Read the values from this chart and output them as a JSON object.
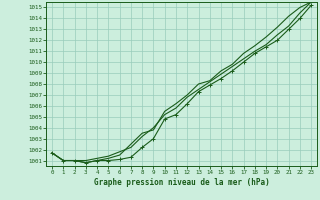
{
  "title": "Graphe pression niveau de la mer (hPa)",
  "bg_color": "#cceedd",
  "grid_color": "#99ccbb",
  "line_color": "#1a5c1a",
  "text_color": "#1a5c1a",
  "xlim": [
    -0.5,
    23.5
  ],
  "ylim": [
    1000.5,
    1015.5
  ],
  "yticks": [
    1001,
    1002,
    1003,
    1004,
    1005,
    1006,
    1007,
    1008,
    1009,
    1010,
    1011,
    1012,
    1013,
    1014,
    1015
  ],
  "xticks": [
    0,
    1,
    2,
    3,
    4,
    5,
    6,
    7,
    8,
    9,
    10,
    11,
    12,
    13,
    14,
    15,
    16,
    17,
    18,
    19,
    20,
    21,
    22,
    23
  ],
  "line1_x": [
    0,
    1,
    2,
    3,
    4,
    5,
    6,
    7,
    8,
    9,
    10,
    11,
    12,
    13,
    14,
    15,
    16,
    17,
    18,
    19,
    20,
    21,
    22,
    23
  ],
  "line1_y": [
    1001.7,
    1001.0,
    1001.0,
    1000.8,
    1001.0,
    1001.0,
    1001.1,
    1001.3,
    1002.2,
    1003.0,
    1004.8,
    1005.2,
    1006.2,
    1007.3,
    1007.9,
    1008.5,
    1009.2,
    1010.0,
    1010.8,
    1011.4,
    1012.0,
    1013.0,
    1014.0,
    1015.2
  ],
  "line2_x": [
    0,
    1,
    2,
    3,
    4,
    5,
    6,
    7,
    8,
    9,
    10,
    11,
    12,
    13,
    14,
    15,
    16,
    17,
    18,
    19,
    20,
    21,
    22,
    23
  ],
  "line2_y": [
    1001.7,
    1001.0,
    1001.0,
    1001.0,
    1001.2,
    1001.4,
    1001.8,
    1002.2,
    1003.2,
    1004.0,
    1005.2,
    1005.8,
    1006.8,
    1007.5,
    1008.2,
    1008.9,
    1009.6,
    1010.3,
    1011.0,
    1011.6,
    1012.5,
    1013.3,
    1014.5,
    1015.5
  ],
  "line3_x": [
    0,
    1,
    2,
    3,
    4,
    5,
    6,
    7,
    8,
    9,
    10,
    11,
    12,
    13,
    14,
    15,
    16,
    17,
    18,
    19,
    20,
    21,
    22,
    23
  ],
  "line3_y": [
    1001.7,
    1001.0,
    1001.0,
    1000.8,
    1001.0,
    1001.2,
    1001.5,
    1002.5,
    1003.5,
    1003.8,
    1005.5,
    1006.2,
    1007.0,
    1008.0,
    1008.3,
    1009.2,
    1009.8,
    1010.8,
    1011.5,
    1012.3,
    1013.2,
    1014.2,
    1015.0,
    1015.5
  ]
}
